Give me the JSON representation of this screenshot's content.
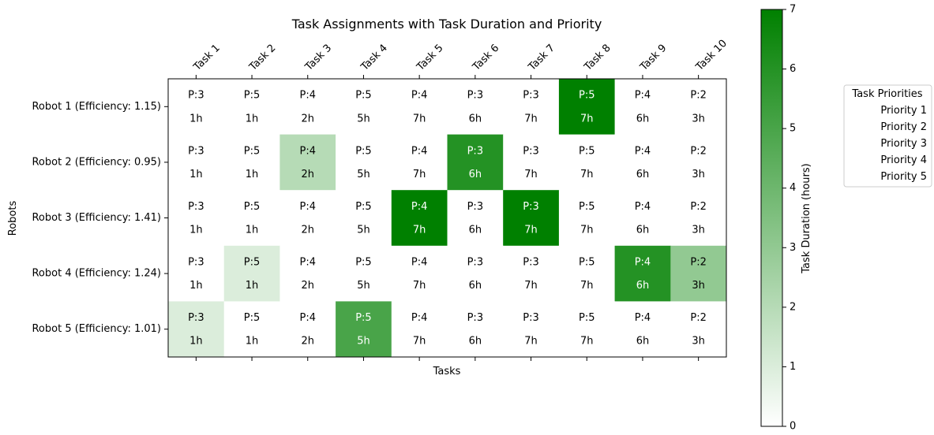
{
  "chart_data": {
    "type": "heatmap",
    "title": "Task Assignments with Task Duration and Priority",
    "xlabel": "Tasks",
    "ylabel": "Robots",
    "x_categories": [
      "Task 1",
      "Task 2",
      "Task 3",
      "Task 4",
      "Task 5",
      "Task 6",
      "Task 7",
      "Task 8",
      "Task 9",
      "Task 10"
    ],
    "y_categories": [
      "Robot 1 (Efficiency: 1.15)",
      "Robot 2 (Efficiency: 0.95)",
      "Robot 3 (Efficiency: 1.41)",
      "Robot 4 (Efficiency: 1.24)",
      "Robot 5 (Efficiency: 1.01)"
    ],
    "task_priority_labels": [
      "P:3",
      "P:5",
      "P:4",
      "P:5",
      "P:4",
      "P:3",
      "P:3",
      "P:5",
      "P:4",
      "P:2"
    ],
    "task_duration_labels": [
      "1h",
      "1h",
      "2h",
      "5h",
      "7h",
      "6h",
      "7h",
      "7h",
      "6h",
      "3h"
    ],
    "assignment_values": [
      [
        0,
        0,
        0,
        0,
        0,
        0,
        0,
        7,
        0,
        0
      ],
      [
        0,
        0,
        2,
        0,
        0,
        6,
        0,
        0,
        0,
        0
      ],
      [
        0,
        0,
        0,
        0,
        7,
        0,
        7,
        0,
        0,
        0
      ],
      [
        0,
        1,
        0,
        0,
        0,
        0,
        0,
        0,
        6,
        3
      ],
      [
        1,
        0,
        0,
        5,
        0,
        0,
        0,
        0,
        0,
        0
      ]
    ],
    "colorbar": {
      "label": "Task Duration (hours)",
      "range": [
        0,
        7
      ],
      "ticks": [
        "0",
        "1",
        "2",
        "3",
        "4",
        "5",
        "6",
        "7"
      ],
      "colormap": [
        "#ffffff",
        "#008000"
      ]
    },
    "legend": {
      "title": "Task Priorities",
      "entries": [
        "Priority 1",
        "Priority 2",
        "Priority 3",
        "Priority 4",
        "Priority 5"
      ],
      "placement": "right"
    }
  }
}
